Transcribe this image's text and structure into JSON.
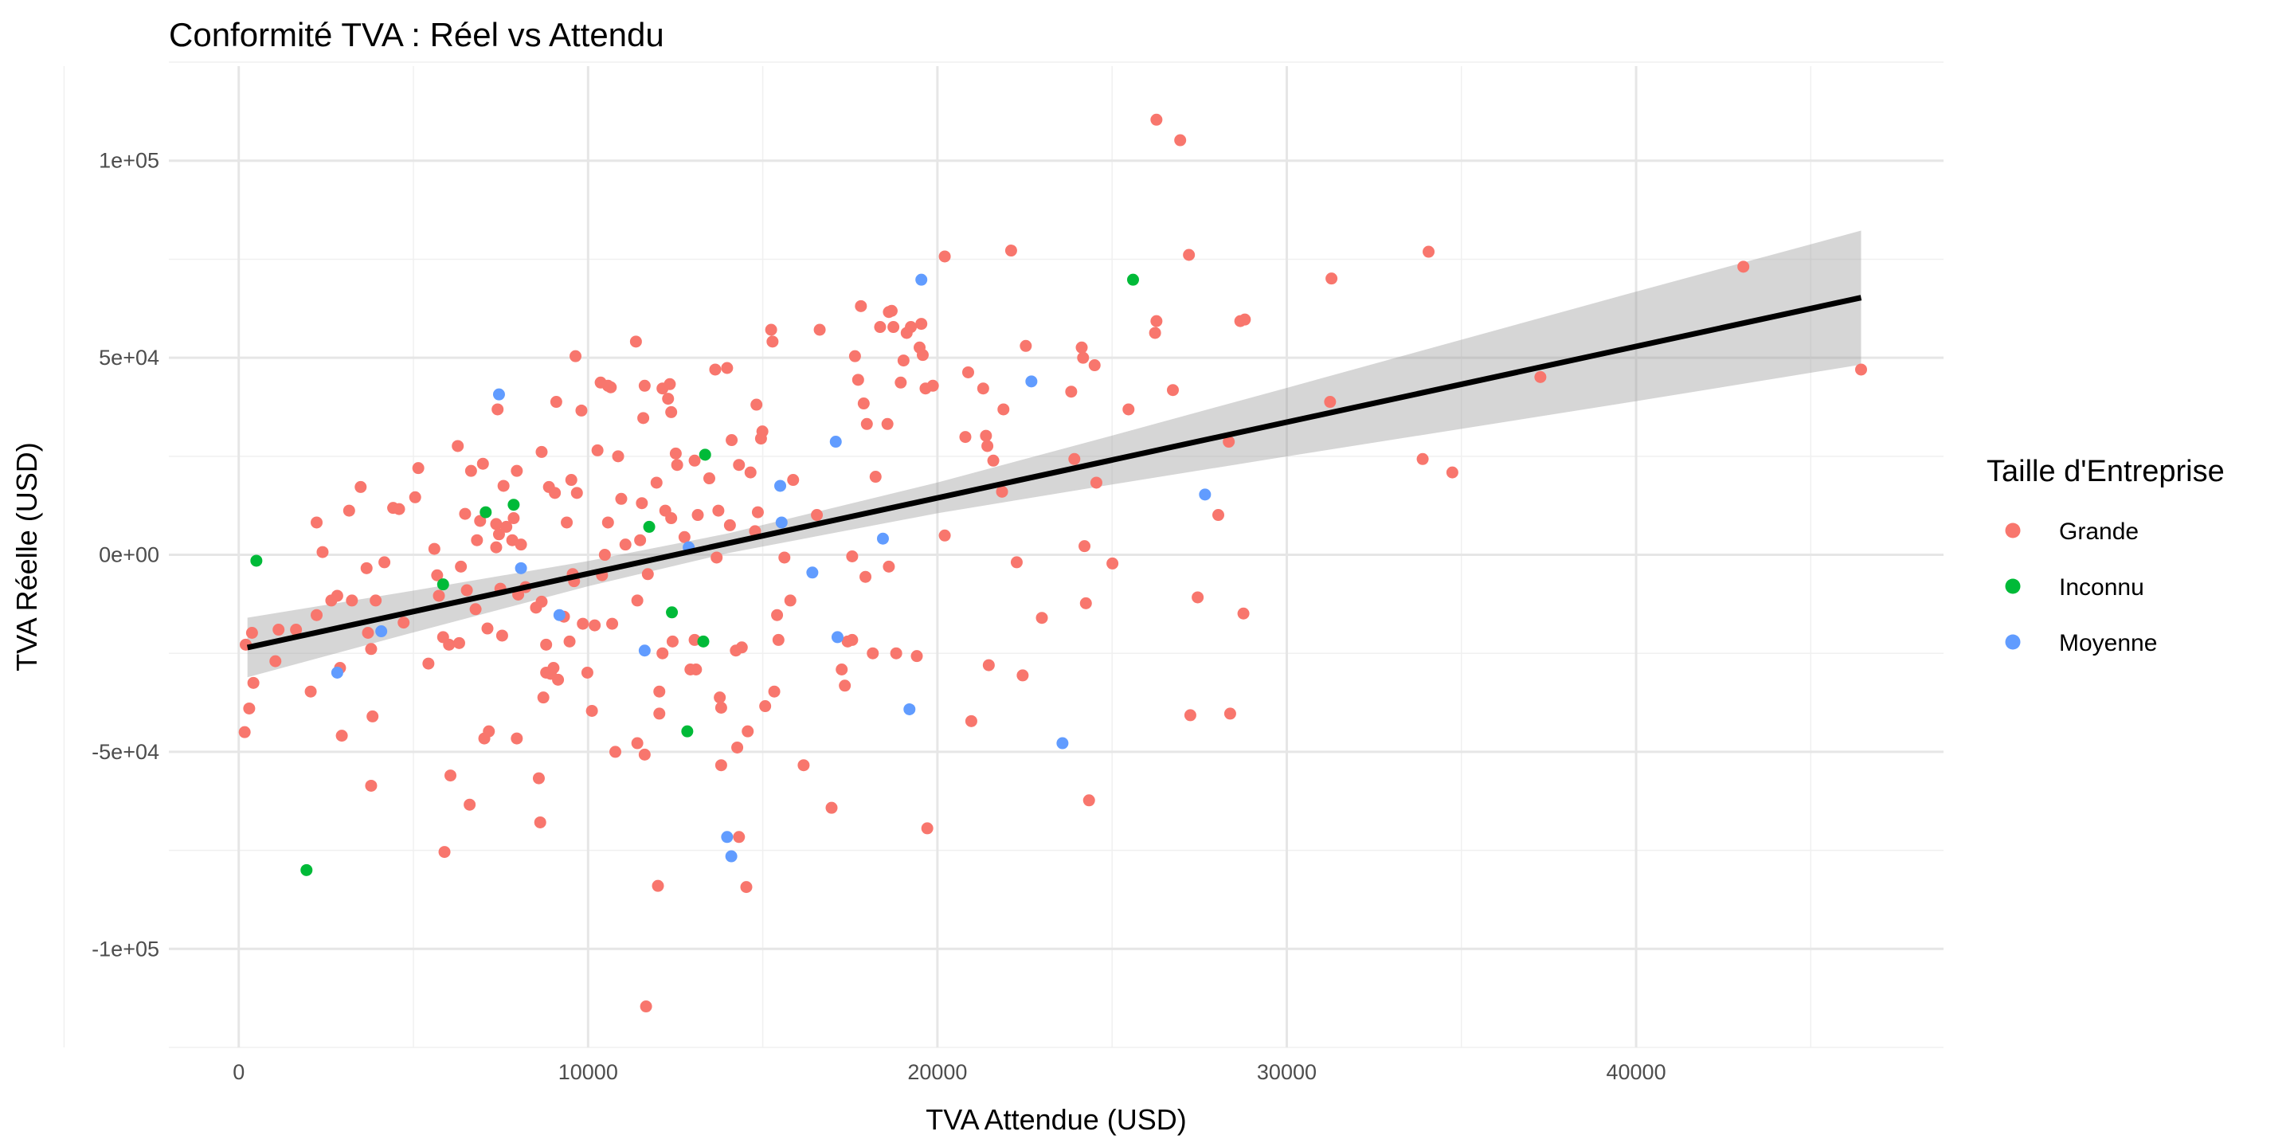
{
  "chart_data": {
    "type": "scatter",
    "title": "Conformité TVA : Réel vs Attendu",
    "xlabel": "TVA Attendue (USD)",
    "ylabel": "TVA Réelle (USD)",
    "xlim": [
      -2000,
      48800
    ],
    "ylim": [
      -125000,
      124000
    ],
    "x_ticks": [
      0,
      10000,
      20000,
      30000,
      40000
    ],
    "x_tick_labels": [
      "0",
      "10000",
      "20000",
      "30000",
      "40000"
    ],
    "y_ticks": [
      -100000,
      -50000,
      0,
      50000,
      100000
    ],
    "y_tick_labels": [
      "-1e+05",
      "-5e+04",
      "0e+00",
      "5e+04",
      "1e+05"
    ],
    "grid": true,
    "legend": {
      "title": "Taille d'Entreprise",
      "placement": "right",
      "entries": [
        {
          "label": "Grande",
          "color": "#F8766D"
        },
        {
          "label": "Inconnu",
          "color": "#00BA38"
        },
        {
          "label": "Moyenne",
          "color": "#619CFF"
        }
      ]
    },
    "regression": {
      "intercept": -24000,
      "slope": 1.922,
      "x_range": [
        250,
        46440
      ],
      "color": "#000000"
    },
    "ci_band": {
      "color": "#999999",
      "x": [
        250,
        5000,
        10000,
        14000,
        20000,
        25000,
        30000,
        35000,
        40000,
        46440
      ],
      "halfwidth": [
        7550,
        5300,
        3200,
        2500,
        3900,
        6200,
        8700,
        11300,
        13900,
        17000
      ]
    },
    "series": [
      {
        "name": "Grande",
        "color": "#F8766D",
        "points": [
          [
            200,
            -22800
          ],
          [
            170,
            -45000
          ],
          [
            300,
            -39000
          ],
          [
            420,
            -32500
          ],
          [
            380,
            -19800
          ],
          [
            1140,
            -19000
          ],
          [
            1050,
            -27000
          ],
          [
            1640,
            -19000
          ],
          [
            2060,
            -34700
          ],
          [
            2230,
            8200
          ],
          [
            2400,
            700
          ],
          [
            2230,
            -15300
          ],
          [
            2650,
            -11600
          ],
          [
            2820,
            -10400
          ],
          [
            2900,
            -28700
          ],
          [
            2950,
            -45900
          ],
          [
            3160,
            11200
          ],
          [
            3240,
            -11600
          ],
          [
            3490,
            17200
          ],
          [
            3660,
            -3400
          ],
          [
            3700,
            -19800
          ],
          [
            3790,
            -23900
          ],
          [
            3790,
            -58600
          ],
          [
            3830,
            -41000
          ],
          [
            3920,
            -11600
          ],
          [
            4170,
            -1900
          ],
          [
            4420,
            11900
          ],
          [
            4590,
            11600
          ],
          [
            4720,
            -17200
          ],
          [
            5050,
            14600
          ],
          [
            5140,
            22000
          ],
          [
            5430,
            -27600
          ],
          [
            5600,
            1500
          ],
          [
            5680,
            -5200
          ],
          [
            5730,
            -10400
          ],
          [
            5850,
            -20900
          ],
          [
            5890,
            -75400
          ],
          [
            6020,
            -22800
          ],
          [
            6060,
            -56000
          ],
          [
            6270,
            27600
          ],
          [
            6310,
            -22400
          ],
          [
            6360,
            -3000
          ],
          [
            6480,
            10400
          ],
          [
            6530,
            -9000
          ],
          [
            6610,
            -63400
          ],
          [
            6650,
            21300
          ],
          [
            6780,
            -13800
          ],
          [
            6820,
            3700
          ],
          [
            6910,
            8600
          ],
          [
            6990,
            23100
          ],
          [
            7030,
            -46600
          ],
          [
            7120,
            -18700
          ],
          [
            7160,
            -44800
          ],
          [
            7370,
            1900
          ],
          [
            7370,
            7800
          ],
          [
            7410,
            36900
          ],
          [
            7450,
            5200
          ],
          [
            7490,
            -8600
          ],
          [
            7540,
            -20500
          ],
          [
            7580,
            17500
          ],
          [
            7660,
            7100
          ],
          [
            7830,
            3700
          ],
          [
            7870,
            9300
          ],
          [
            7960,
            -46600
          ],
          [
            7960,
            21300
          ],
          [
            8000,
            -10100
          ],
          [
            8080,
            2600
          ],
          [
            8210,
            -8200
          ],
          [
            8510,
            -13400
          ],
          [
            8590,
            -56700
          ],
          [
            8630,
            -67900
          ],
          [
            8670,
            26100
          ],
          [
            8670,
            -11900
          ],
          [
            8720,
            -36200
          ],
          [
            8800,
            -22800
          ],
          [
            8800,
            -29900
          ],
          [
            8880,
            17200
          ],
          [
            8930,
            -30200
          ],
          [
            9010,
            -28700
          ],
          [
            9050,
            15700
          ],
          [
            9090,
            38800
          ],
          [
            9140,
            -31700
          ],
          [
            9310,
            -15700
          ],
          [
            9390,
            8200
          ],
          [
            9470,
            -22000
          ],
          [
            9520,
            19000
          ],
          [
            9560,
            -4900
          ],
          [
            9600,
            -6700
          ],
          [
            9640,
            50400
          ],
          [
            9680,
            15700
          ],
          [
            9810,
            36600
          ],
          [
            9850,
            -17500
          ],
          [
            9980,
            -29900
          ],
          [
            10110,
            -39600
          ],
          [
            10190,
            -17900
          ],
          [
            10270,
            26500
          ],
          [
            10360,
            43700
          ],
          [
            10400,
            -5200
          ],
          [
            10480,
            0
          ],
          [
            10570,
            42900
          ],
          [
            10570,
            8200
          ],
          [
            10650,
            42500
          ],
          [
            10690,
            -17500
          ],
          [
            10780,
            -50000
          ],
          [
            10860,
            25000
          ],
          [
            10950,
            14200
          ],
          [
            11070,
            2600
          ],
          [
            11370,
            54100
          ],
          [
            11410,
            -47800
          ],
          [
            11410,
            -11600
          ],
          [
            11490,
            3700
          ],
          [
            11540,
            13100
          ],
          [
            11580,
            34700
          ],
          [
            11620,
            42900
          ],
          [
            11620,
            -50700
          ],
          [
            11660,
            -114600
          ],
          [
            11710,
            -4900
          ],
          [
            11960,
            18300
          ],
          [
            12000,
            -84000
          ],
          [
            12040,
            -34700
          ],
          [
            12040,
            -40300
          ],
          [
            12130,
            -25000
          ],
          [
            12130,
            42200
          ],
          [
            12210,
            11200
          ],
          [
            12290,
            39600
          ],
          [
            12340,
            43300
          ],
          [
            12380,
            36200
          ],
          [
            12380,
            9300
          ],
          [
            12420,
            -22000
          ],
          [
            12510,
            25700
          ],
          [
            12550,
            22800
          ],
          [
            12760,
            4500
          ],
          [
            12930,
            -29100
          ],
          [
            13090,
            -29100
          ],
          [
            13050,
            23900
          ],
          [
            13050,
            -21600
          ],
          [
            13140,
            10100
          ],
          [
            13470,
            19400
          ],
          [
            13640,
            47000
          ],
          [
            13680,
            -700
          ],
          [
            13730,
            11200
          ],
          [
            13770,
            -36200
          ],
          [
            13810,
            -53400
          ],
          [
            13810,
            -38800
          ],
          [
            13980,
            47400
          ],
          [
            14060,
            7500
          ],
          [
            14110,
            29100
          ],
          [
            14230,
            -24300
          ],
          [
            14270,
            -48900
          ],
          [
            14320,
            -71600
          ],
          [
            14320,
            22800
          ],
          [
            14400,
            -23500
          ],
          [
            14530,
            -84300
          ],
          [
            14570,
            -44800
          ],
          [
            14650,
            20900
          ],
          [
            14780,
            6000
          ],
          [
            14820,
            38100
          ],
          [
            14860,
            10800
          ],
          [
            14950,
            29500
          ],
          [
            14990,
            31300
          ],
          [
            15070,
            -38400
          ],
          [
            15240,
            57100
          ],
          [
            15280,
            54100
          ],
          [
            15330,
            -34700
          ],
          [
            15410,
            -15300
          ],
          [
            15450,
            -21600
          ],
          [
            15620,
            -700
          ],
          [
            15790,
            -11600
          ],
          [
            15870,
            19000
          ],
          [
            16170,
            -53400
          ],
          [
            16550,
            10100
          ],
          [
            16630,
            57100
          ],
          [
            16970,
            -64200
          ],
          [
            17260,
            -29100
          ],
          [
            17350,
            -33200
          ],
          [
            17430,
            -22000
          ],
          [
            17560,
            -400
          ],
          [
            17560,
            -21600
          ],
          [
            17640,
            50400
          ],
          [
            17730,
            44400
          ],
          [
            17810,
            63100
          ],
          [
            17890,
            38400
          ],
          [
            17940,
            -5600
          ],
          [
            17980,
            33200
          ],
          [
            18150,
            -25000
          ],
          [
            18230,
            19800
          ],
          [
            18360,
            57800
          ],
          [
            18570,
            33200
          ],
          [
            18610,
            61600
          ],
          [
            18690,
            61900
          ],
          [
            18740,
            57800
          ],
          [
            18610,
            -3000
          ],
          [
            18820,
            -25000
          ],
          [
            18950,
            43700
          ],
          [
            19030,
            49300
          ],
          [
            19120,
            56300
          ],
          [
            19240,
            57800
          ],
          [
            19410,
            -25700
          ],
          [
            19490,
            52600
          ],
          [
            19540,
            58600
          ],
          [
            19580,
            50700
          ],
          [
            19660,
            42200
          ],
          [
            19710,
            -69400
          ],
          [
            19870,
            42900
          ],
          [
            20210,
            4900
          ],
          [
            20210,
            75700
          ],
          [
            20800,
            29900
          ],
          [
            20880,
            46300
          ],
          [
            20970,
            -42200
          ],
          [
            21310,
            42200
          ],
          [
            21390,
            30200
          ],
          [
            21430,
            27600
          ],
          [
            21470,
            -28000
          ],
          [
            21600,
            23900
          ],
          [
            21850,
            16000
          ],
          [
            21890,
            36900
          ],
          [
            22110,
            77200
          ],
          [
            22270,
            -1900
          ],
          [
            22440,
            -30600
          ],
          [
            22530,
            53000
          ],
          [
            22990,
            -16000
          ],
          [
            23830,
            41400
          ],
          [
            23920,
            24300
          ],
          [
            24130,
            52600
          ],
          [
            24170,
            50000
          ],
          [
            24210,
            2200
          ],
          [
            24250,
            -12300
          ],
          [
            24340,
            -62300
          ],
          [
            24500,
            48100
          ],
          [
            24550,
            18300
          ],
          [
            25010,
            -2200
          ],
          [
            25470,
            36900
          ],
          [
            26270,
            110400
          ],
          [
            26230,
            56300
          ],
          [
            26270,
            59300
          ],
          [
            26740,
            41800
          ],
          [
            26950,
            105200
          ],
          [
            27200,
            76100
          ],
          [
            27240,
            -40700
          ],
          [
            27450,
            -10800
          ],
          [
            28040,
            10100
          ],
          [
            28340,
            28700
          ],
          [
            28380,
            -40300
          ],
          [
            28670,
            59300
          ],
          [
            28800,
            59700
          ],
          [
            28760,
            -14900
          ],
          [
            31280,
            70100
          ],
          [
            31240,
            38800
          ],
          [
            33890,
            24300
          ],
          [
            34060,
            76900
          ],
          [
            34740,
            20900
          ],
          [
            37260,
            45100
          ],
          [
            43070,
            73100
          ],
          [
            46440,
            47000
          ]
        ]
      },
      {
        "name": "Inconnu",
        "color": "#00BA38",
        "points": [
          [
            505,
            -1500
          ],
          [
            1940,
            -80000
          ],
          [
            5850,
            -7500
          ],
          [
            7070,
            10800
          ],
          [
            7870,
            12700
          ],
          [
            11750,
            7100
          ],
          [
            12400,
            -14600
          ],
          [
            13300,
            -22000
          ],
          [
            12840,
            -44800
          ],
          [
            13350,
            25400
          ],
          [
            25600,
            69800
          ]
        ]
      },
      {
        "name": "Moyenne",
        "color": "#619CFF",
        "points": [
          [
            7450,
            40700
          ],
          [
            4080,
            -19400
          ],
          [
            2820,
            -29900
          ],
          [
            8080,
            -3400
          ],
          [
            9180,
            -15300
          ],
          [
            11620,
            -24300
          ],
          [
            12880,
            1900
          ],
          [
            13980,
            -71600
          ],
          [
            14100,
            -76500
          ],
          [
            15500,
            17500
          ],
          [
            16420,
            -4500
          ],
          [
            17090,
            28700
          ],
          [
            17140,
            -20900
          ],
          [
            18440,
            4100
          ],
          [
            19200,
            -39200
          ],
          [
            19540,
            69800
          ],
          [
            22690,
            44000
          ],
          [
            23580,
            -47800
          ],
          [
            27660,
            15300
          ],
          [
            15540,
            8200
          ]
        ]
      }
    ]
  }
}
